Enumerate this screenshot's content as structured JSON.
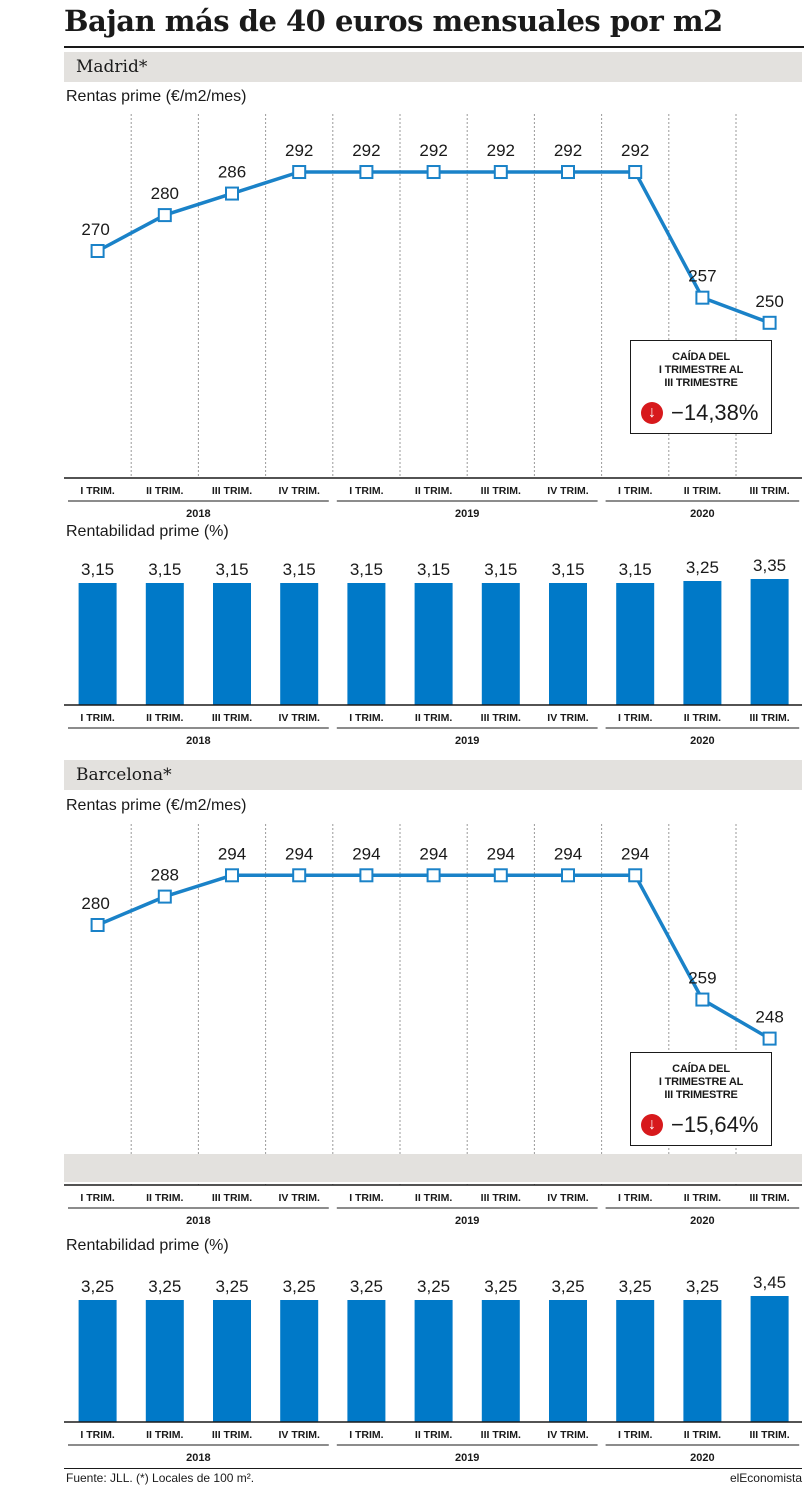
{
  "title": "Bajan más de 40 euros mensuales por m2",
  "footer": {
    "source": "Fuente: JLL. (*) Locales de 100 m².",
    "brand": "elEconomista"
  },
  "quarter_labels": [
    "I TRIM.",
    "II TRIM.",
    "III TRIM.",
    "IV TRIM.",
    "I TRIM.",
    "II TRIM.",
    "III TRIM.",
    "IV TRIM.",
    "I TRIM.",
    "II TRIM.",
    "III TRIM."
  ],
  "years": [
    "2018",
    "2019",
    "2020"
  ],
  "colors": {
    "series": "#1a82c8",
    "bar": "#0079c8",
    "band": "#e3e1de",
    "down_arrow": "#d7191c"
  },
  "chart_data": [
    {
      "type": "line",
      "city": "Madrid*",
      "subtitle": "Rentas prime (€/m2/mes)",
      "categories": [
        "I TRIM. 2018",
        "II TRIM. 2018",
        "III TRIM. 2018",
        "IV TRIM. 2018",
        "I TRIM. 2019",
        "II TRIM. 2019",
        "III TRIM. 2019",
        "IV TRIM. 2019",
        "I TRIM. 2020",
        "II TRIM. 2020",
        "III TRIM. 2020"
      ],
      "values": [
        270,
        280,
        286,
        292,
        292,
        292,
        292,
        292,
        292,
        257,
        250
      ],
      "labels": [
        "270",
        "280",
        "286",
        "292",
        "292",
        "292",
        "292",
        "292",
        "292",
        "257",
        "250"
      ],
      "callout": {
        "caption": "CAÍDA DEL\nI TRIMESTRE AL\nIII TRIMESTRE",
        "value": "−14,38%",
        "icon": "down-arrow-icon"
      }
    },
    {
      "type": "bar",
      "city": "Madrid*",
      "subtitle": "Rentabilidad prime (%)",
      "categories": [
        "I TRIM. 2018",
        "II TRIM. 2018",
        "III TRIM. 2018",
        "IV TRIM. 2018",
        "I TRIM. 2019",
        "II TRIM. 2019",
        "III TRIM. 2019",
        "IV TRIM. 2019",
        "I TRIM. 2020",
        "II TRIM. 2020",
        "III TRIM. 2020"
      ],
      "values": [
        3.15,
        3.15,
        3.15,
        3.15,
        3.15,
        3.15,
        3.15,
        3.15,
        3.15,
        3.25,
        3.35
      ],
      "labels": [
        "3,15",
        "3,15",
        "3,15",
        "3,15",
        "3,15",
        "3,15",
        "3,15",
        "3,15",
        "3,15",
        "3,25",
        "3,35"
      ]
    },
    {
      "type": "line",
      "city": "Barcelona*",
      "subtitle": "Rentas prime (€/m2/mes)",
      "categories": [
        "I TRIM. 2018",
        "II TRIM. 2018",
        "III TRIM. 2018",
        "IV TRIM. 2018",
        "I TRIM. 2019",
        "II TRIM. 2019",
        "III TRIM. 2019",
        "IV TRIM. 2019",
        "I TRIM. 2020",
        "II TRIM. 2020",
        "III TRIM. 2020"
      ],
      "values": [
        280,
        288,
        294,
        294,
        294,
        294,
        294,
        294,
        294,
        259,
        248
      ],
      "labels": [
        "280",
        "288",
        "294",
        "294",
        "294",
        "294",
        "294",
        "294",
        "294",
        "259",
        "248"
      ],
      "callout": {
        "caption": "CAÍDA DEL\nI TRIMESTRE AL\nIII TRIMESTRE",
        "value": "−15,64%",
        "icon": "down-arrow-icon"
      }
    },
    {
      "type": "bar",
      "city": "Barcelona*",
      "subtitle": "Rentabilidad prime (%)",
      "categories": [
        "I TRIM. 2018",
        "II TRIM. 2018",
        "III TRIM. 2018",
        "IV TRIM. 2018",
        "I TRIM. 2019",
        "II TRIM. 2019",
        "III TRIM. 2019",
        "IV TRIM. 2019",
        "I TRIM. 2020",
        "II TRIM. 2020",
        "III TRIM. 2020"
      ],
      "values": [
        3.25,
        3.25,
        3.25,
        3.25,
        3.25,
        3.25,
        3.25,
        3.25,
        3.25,
        3.25,
        3.45
      ],
      "labels": [
        "3,25",
        "3,25",
        "3,25",
        "3,25",
        "3,25",
        "3,25",
        "3,25",
        "3,25",
        "3,25",
        "3,25",
        "3,45"
      ]
    }
  ]
}
